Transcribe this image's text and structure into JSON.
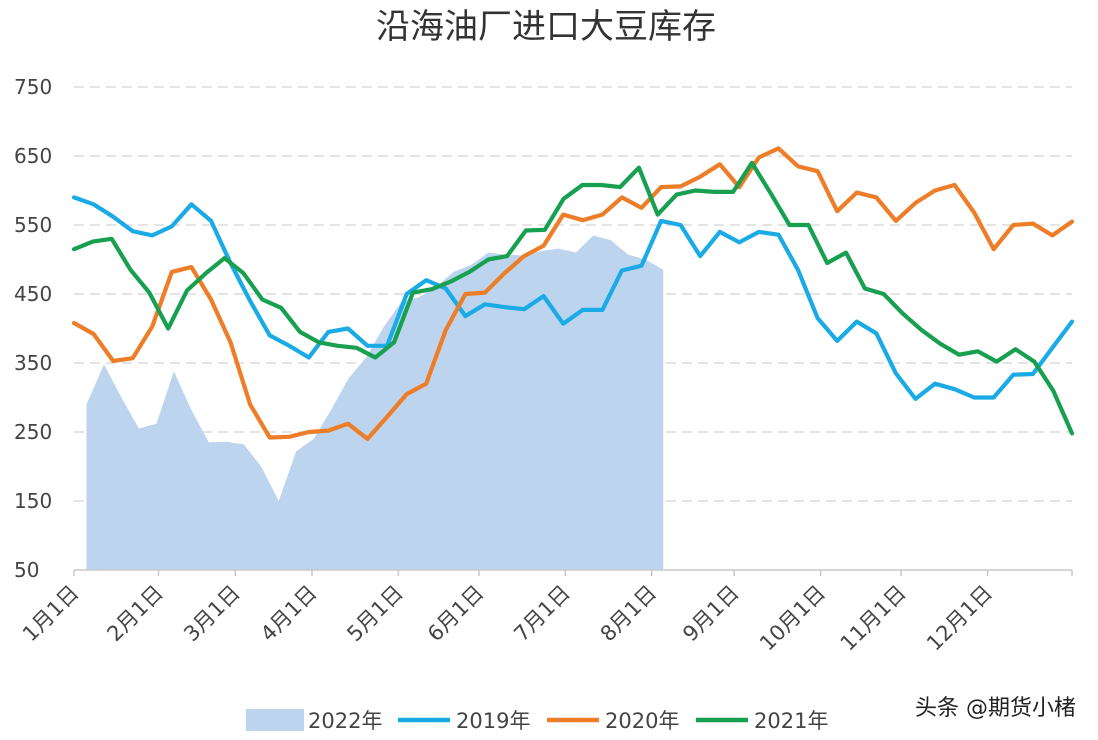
{
  "chart_data": {
    "type": "line",
    "title": "沿海油厂进口大豆库存",
    "xlabel": "",
    "ylabel": "",
    "ylim": [
      50,
      750
    ],
    "yticks": [
      50,
      150,
      250,
      350,
      450,
      550,
      650,
      750
    ],
    "xlim": [
      0,
      52
    ],
    "x_tick_labels": [
      "1月1日",
      "2月1日",
      "3月1日",
      "4月1日",
      "5月1日",
      "6月1日",
      "7月1日",
      "8月1日",
      "9月1日",
      "10月1日",
      "11月1日",
      "12月1日"
    ],
    "x_tick_weeks": [
      0,
      4.4,
      8.4,
      12.4,
      16.9,
      21.1,
      25.6,
      30.1,
      34.4,
      38.9,
      43.1,
      47.6
    ],
    "grid": true,
    "legend_position": "bottom",
    "series": [
      {
        "name": "2022年",
        "kind": "area",
        "color": "#bcd4ee",
        "values": [
          290,
          348,
          300,
          255,
          262,
          338,
          282,
          235,
          236,
          232,
          200,
          150,
          222,
          240,
          282,
          328,
          358,
          402,
          438,
          445,
          460,
          482,
          492,
          510,
          507,
          506,
          512,
          516,
          510,
          535,
          528,
          507,
          500,
          485
        ]
      },
      {
        "name": "2019年",
        "kind": "line",
        "color": "#1aabe6",
        "values": [
          590,
          580,
          562,
          541,
          535,
          548,
          580,
          556,
          495,
          440,
          390,
          375,
          358,
          395,
          400,
          375,
          375,
          450,
          470,
          458,
          418,
          435,
          431,
          428,
          447,
          407,
          427,
          427,
          484,
          491,
          556,
          550,
          505,
          540,
          525,
          540,
          536,
          485,
          415,
          382,
          410,
          393,
          335,
          298,
          320,
          312,
          300,
          300,
          333,
          334,
          372,
          410
        ]
      },
      {
        "name": "2020年",
        "kind": "line",
        "color": "#ee7d28",
        "values": [
          408,
          392,
          353,
          357,
          403,
          482,
          489,
          442,
          380,
          290,
          242,
          243,
          250,
          252,
          262,
          240,
          272,
          305,
          320,
          398,
          450,
          452,
          480,
          505,
          520,
          565,
          557,
          565,
          590,
          575,
          605,
          606,
          620,
          638,
          605,
          648,
          661,
          635,
          628,
          570,
          597,
          590,
          556,
          582,
          600,
          608,
          568,
          515,
          550,
          552,
          535,
          555
        ]
      },
      {
        "name": "2021年",
        "kind": "line",
        "color": "#17a04f",
        "values": [
          515,
          526,
          530,
          485,
          452,
          400,
          455,
          480,
          502,
          480,
          442,
          430,
          395,
          380,
          375,
          372,
          358,
          380,
          452,
          457,
          468,
          482,
          500,
          505,
          542,
          543,
          588,
          608,
          608,
          605,
          633,
          565,
          594,
          600,
          598,
          598,
          640,
          596,
          550,
          550,
          495,
          510,
          458,
          450,
          422,
          398,
          378,
          362,
          367,
          352,
          370,
          352,
          310,
          248
        ]
      }
    ]
  },
  "watermark": "头条 @期货小楮"
}
